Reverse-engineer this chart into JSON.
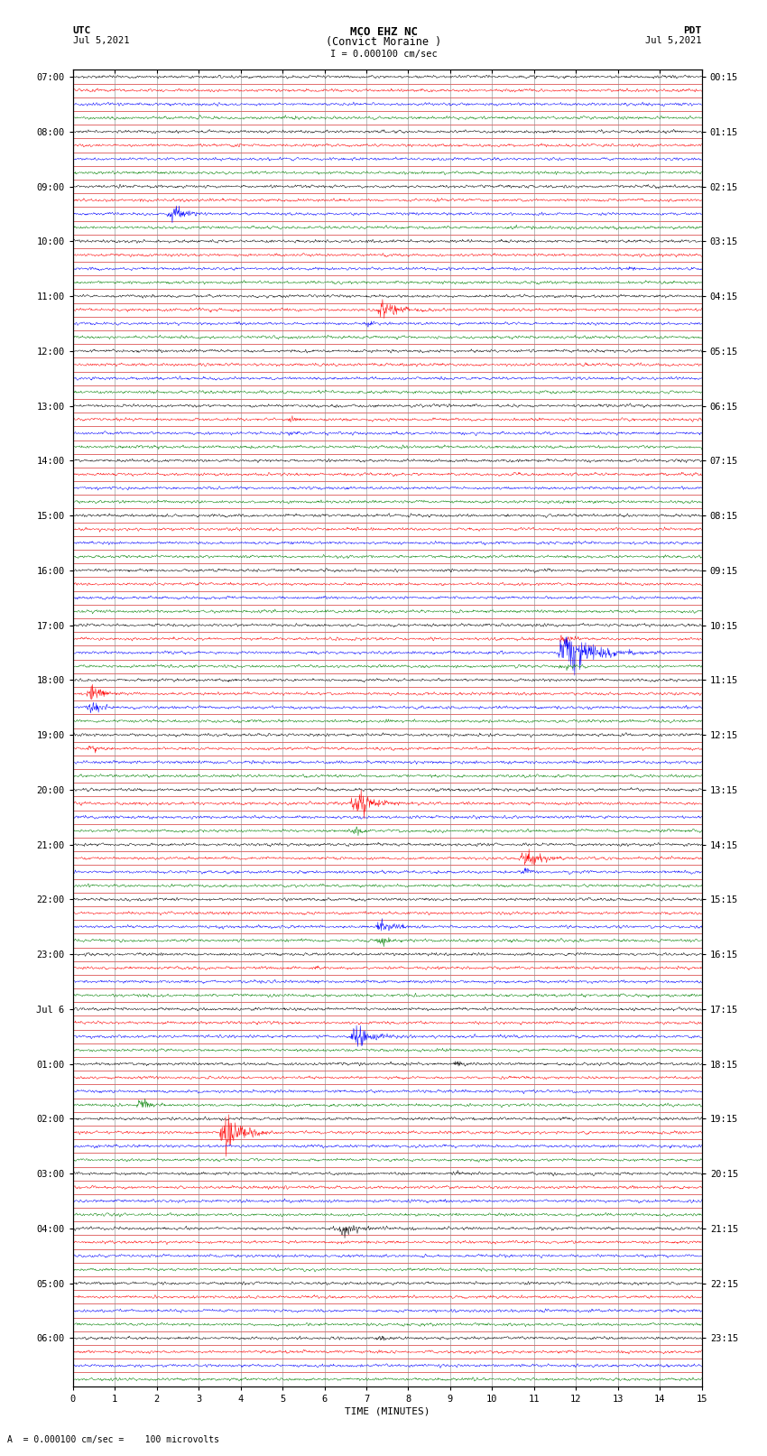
{
  "title_line1": "MCO EHZ NC",
  "title_line2": "(Convict Moraine )",
  "scale_text": "I = 0.000100 cm/sec",
  "utc_label": "UTC",
  "utc_date": "Jul 5,2021",
  "pdt_label": "PDT",
  "pdt_date": "Jul 5,2021",
  "bottom_label": "TIME (MINUTES)",
  "xlabel_note": "A  = 0.000100 cm/sec =    100 microvolts",
  "num_traces": 96,
  "mins_per_trace": 15,
  "trace_colors": [
    "black",
    "red",
    "blue",
    "green"
  ],
  "bg_color": "white",
  "grid_color_h": "#cc0000",
  "grid_color_v": "#888888",
  "fig_width": 8.5,
  "fig_height": 16.13,
  "left_labels_utc": [
    "07:00",
    "",
    "",
    "",
    "08:00",
    "",
    "",
    "",
    "09:00",
    "",
    "",
    "",
    "10:00",
    "",
    "",
    "",
    "11:00",
    "",
    "",
    "",
    "12:00",
    "",
    "",
    "",
    "13:00",
    "",
    "",
    "",
    "14:00",
    "",
    "",
    "",
    "15:00",
    "",
    "",
    "",
    "16:00",
    "",
    "",
    "",
    "17:00",
    "",
    "",
    "",
    "18:00",
    "",
    "",
    "",
    "19:00",
    "",
    "",
    "",
    "20:00",
    "",
    "",
    "",
    "21:00",
    "",
    "",
    "",
    "22:00",
    "",
    "",
    "",
    "23:00",
    "",
    "",
    "",
    "Jul 6",
    "",
    "",
    "",
    "01:00",
    "",
    "",
    "",
    "02:00",
    "",
    "",
    "",
    "03:00",
    "",
    "",
    "",
    "04:00",
    "",
    "",
    "",
    "05:00",
    "",
    "",
    "",
    "06:00",
    "",
    "",
    ""
  ],
  "right_labels_pdt": [
    "00:15",
    "",
    "",
    "",
    "01:15",
    "",
    "",
    "",
    "02:15",
    "",
    "",
    "",
    "03:15",
    "",
    "",
    "",
    "04:15",
    "",
    "",
    "",
    "05:15",
    "",
    "",
    "",
    "06:15",
    "",
    "",
    "",
    "07:15",
    "",
    "",
    "",
    "08:15",
    "",
    "",
    "",
    "09:15",
    "",
    "",
    "",
    "10:15",
    "",
    "",
    "",
    "11:15",
    "",
    "",
    "",
    "12:15",
    "",
    "",
    "",
    "13:15",
    "",
    "",
    "",
    "14:15",
    "",
    "",
    "",
    "15:15",
    "",
    "",
    "",
    "16:15",
    "",
    "",
    "",
    "17:15",
    "",
    "",
    "",
    "18:15",
    "",
    "",
    "",
    "19:15",
    "",
    "",
    "",
    "20:15",
    "",
    "",
    "",
    "21:15",
    "",
    "",
    "",
    "22:15",
    "",
    "",
    "",
    "23:15",
    "",
    "",
    ""
  ],
  "big_events": {
    "6": [
      0.45,
      0.8,
      40,
      "red"
    ],
    "10": [
      0.15,
      2.5,
      120,
      "blue"
    ],
    "14": [
      0.88,
      0.9,
      50,
      "black"
    ],
    "17": [
      0.48,
      1.8,
      200,
      "green"
    ],
    "18": [
      0.46,
      1.2,
      80,
      "red"
    ],
    "22": [
      0.58,
      0.7,
      60,
      "red"
    ],
    "25": [
      0.34,
      1.0,
      90,
      "black"
    ],
    "26": [
      0.34,
      0.8,
      70,
      "red"
    ],
    "33": [
      0.47,
      0.6,
      50,
      "red"
    ],
    "38": [
      0.47,
      0.6,
      40,
      "black"
    ],
    "41": [
      0.77,
      1.5,
      100,
      "blue"
    ],
    "42": [
      0.77,
      4.0,
      300,
      "blue"
    ],
    "43": [
      0.77,
      1.2,
      100,
      "black"
    ],
    "45": [
      0.02,
      2.5,
      120,
      "black"
    ],
    "46": [
      0.02,
      2.5,
      100,
      "red"
    ],
    "49": [
      0.02,
      1.5,
      80,
      "red"
    ],
    "53": [
      0.44,
      2.5,
      200,
      "black"
    ],
    "55": [
      0.44,
      1.2,
      80,
      "black"
    ],
    "57": [
      0.71,
      2.5,
      150,
      "blue"
    ],
    "58": [
      0.71,
      1.2,
      80,
      "red"
    ],
    "62": [
      0.48,
      2.0,
      150,
      "blue"
    ],
    "63": [
      0.48,
      1.5,
      100,
      "green"
    ],
    "65": [
      0.38,
      1.0,
      60,
      "red"
    ],
    "70": [
      0.44,
      2.8,
      180,
      "blue"
    ],
    "72": [
      0.6,
      1.2,
      80,
      "green"
    ],
    "75": [
      0.1,
      2.0,
      100,
      "red"
    ],
    "77": [
      0.23,
      3.5,
      200,
      "red"
    ],
    "80": [
      0.6,
      1.2,
      80,
      "black"
    ],
    "84": [
      0.42,
      2.2,
      150,
      "blue"
    ],
    "85": [
      0.42,
      0.9,
      60,
      "black"
    ],
    "88": [
      0.0,
      0.8,
      40,
      "red"
    ],
    "92": [
      0.48,
      1.2,
      80,
      "black"
    ],
    "93": [
      0.48,
      0.8,
      60,
      "green"
    ]
  }
}
